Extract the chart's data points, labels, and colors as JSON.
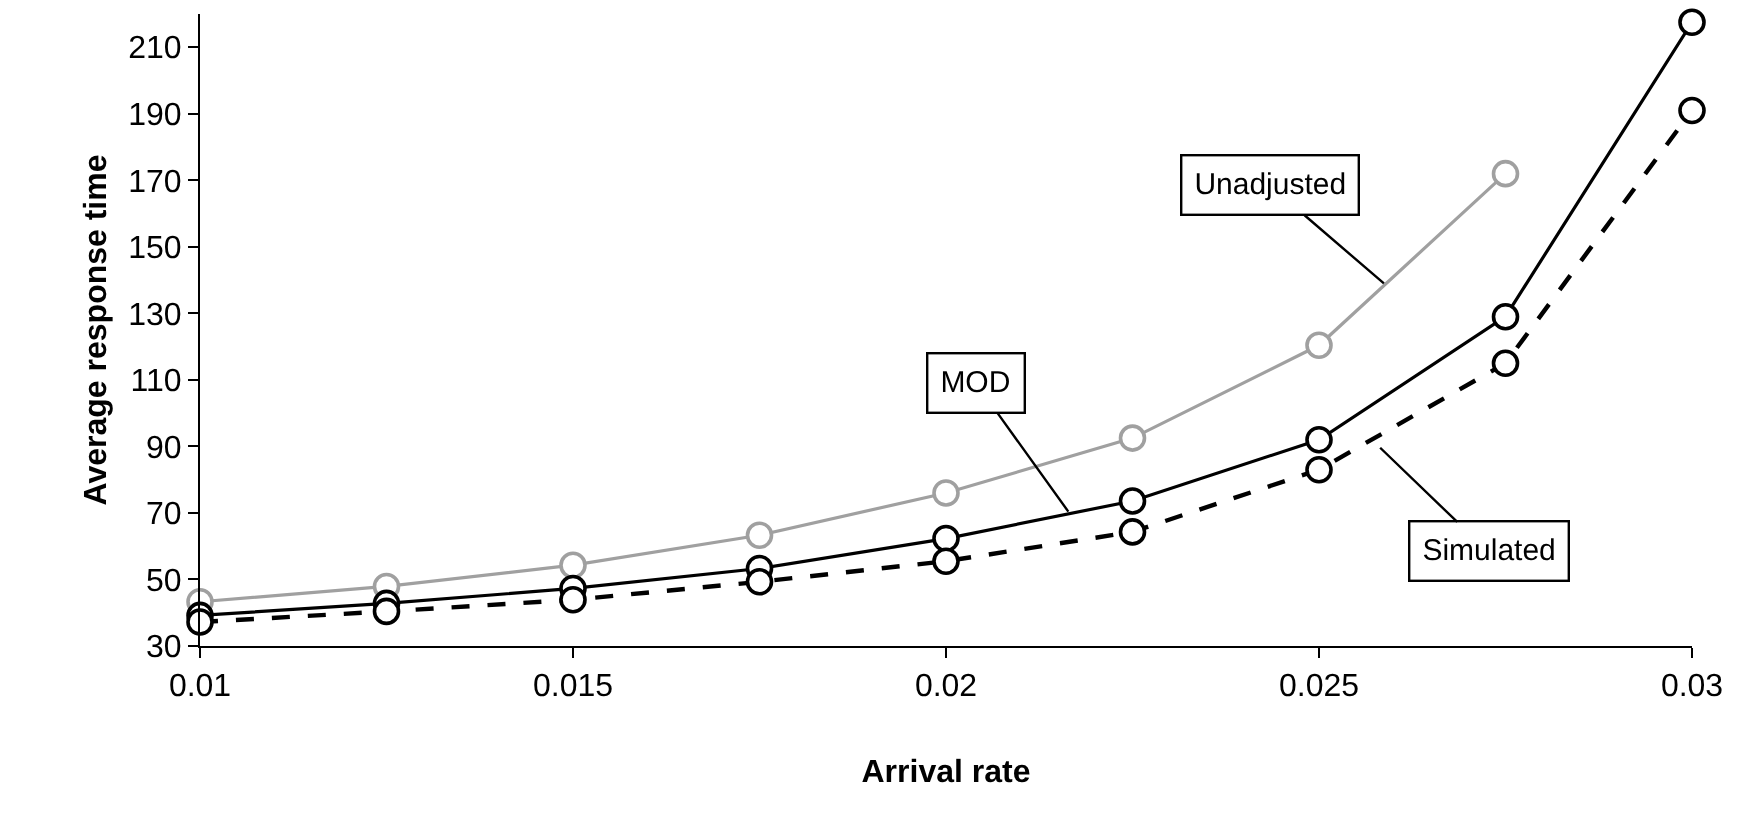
{
  "chart_data": {
    "type": "line",
    "xlabel": "Arrival rate",
    "ylabel": "Average response time",
    "x": [
      0.01,
      0.0125,
      0.015,
      0.0175,
      0.02,
      0.0225,
      0.025,
      0.0275,
      0.03
    ],
    "series": [
      {
        "color": "#a0a0a0",
        "line_style": "solid",
        "values": [
          43.3,
          47.9,
          54.3,
          63.3,
          76,
          92.5,
          120.4,
          172,
          null
        ]
      },
      {
        "color": "#000000",
        "line_style": "solid",
        "values": [
          39.2,
          42.8,
          47.3,
          53.3,
          62.3,
          73.6,
          92,
          129,
          217.5
        ]
      },
      {
        "color": "#000000",
        "line_style": "dashed",
        "values": [
          37.2,
          40.4,
          43.9,
          49.3,
          55.5,
          64.3,
          83,
          115,
          191
        ]
      }
    ],
    "annotations": [
      {
        "text": "Unadjusted",
        "x": 0.02587,
        "y": 139
      },
      {
        "text": "MOD",
        "x": 0.02164,
        "y": 70.4
      },
      {
        "text": "Simulated",
        "x": 0.02582,
        "y": 89.6
      }
    ],
    "xlim": [
      0.01,
      0.03
    ],
    "xticks": [
      0.01,
      0.015,
      0.02,
      0.025,
      0.03
    ],
    "ylim": [
      30,
      220
    ],
    "yticks": [
      30,
      50,
      70,
      90,
      110,
      130,
      150,
      170,
      190,
      210
    ],
    "marker": "circle"
  }
}
